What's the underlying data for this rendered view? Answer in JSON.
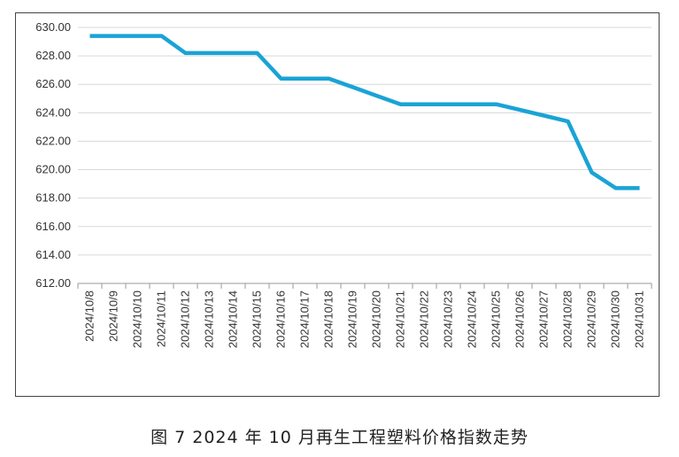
{
  "caption": "图 7  2024 年 10 月再生工程塑料价格指数走势",
  "chart_data": {
    "type": "line",
    "categories": [
      "2024/10/8",
      "2024/10/9",
      "2024/10/10",
      "2024/10/11",
      "2024/10/12",
      "2024/10/13",
      "2024/10/14",
      "2024/10/15",
      "2024/10/16",
      "2024/10/17",
      "2024/10/18",
      "2024/10/19",
      "2024/10/20",
      "2024/10/21",
      "2024/10/22",
      "2024/10/23",
      "2024/10/24",
      "2024/10/25",
      "2024/10/26",
      "2024/10/27",
      "2024/10/28",
      "2024/10/29",
      "2024/10/30",
      "2024/10/31"
    ],
    "series": [
      {
        "values": [
          629.4,
          629.4,
          629.4,
          629.4,
          628.2,
          628.2,
          628.2,
          628.2,
          626.4,
          626.4,
          626.4,
          625.8,
          625.2,
          624.6,
          624.6,
          624.6,
          624.6,
          624.6,
          624.2,
          623.8,
          623.4,
          619.8,
          618.7,
          618.7
        ]
      }
    ],
    "ylim": [
      612,
      630
    ],
    "y_ticks": [
      "612.00",
      "614.00",
      "616.00",
      "618.00",
      "620.00",
      "622.00",
      "624.00",
      "626.00",
      "628.00",
      "630.00"
    ],
    "grid": true,
    "line_color": "#1aa3d6"
  }
}
